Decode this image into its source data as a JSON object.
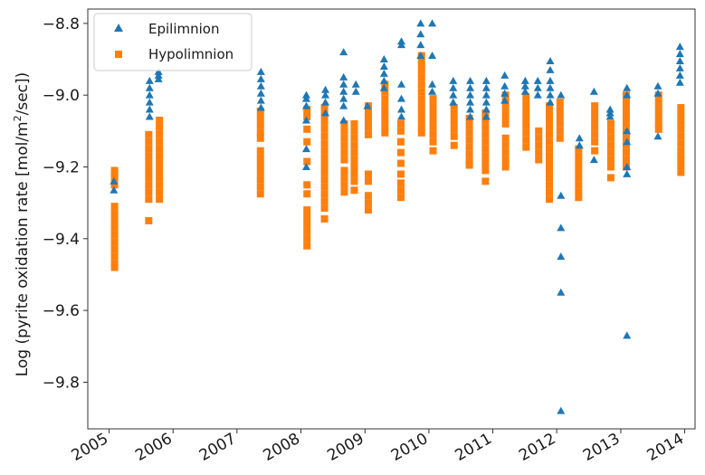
{
  "chart_data": {
    "type": "scatter",
    "title": "",
    "xlabel": "",
    "ylabel": "Log (pyrite oxidation rate [mol/m²/sec])",
    "ylabel_parts": {
      "before": "Log (pyrite oxidation rate [mol/m",
      "sup": "2",
      "after": "/sec])"
    },
    "x_axis_type": "date",
    "xlim": [
      "2004-09-01",
      "2014-03-01"
    ],
    "ylim": [
      -9.93,
      -8.76
    ],
    "x_ticks": [
      {
        "label": "2005",
        "date": "2005-01-01"
      },
      {
        "label": "2006",
        "date": "2006-01-01"
      },
      {
        "label": "2007",
        "date": "2007-01-01"
      },
      {
        "label": "2008",
        "date": "2008-01-01"
      },
      {
        "label": "2009",
        "date": "2009-01-01"
      },
      {
        "label": "2010",
        "date": "2010-01-01"
      },
      {
        "label": "2011",
        "date": "2011-01-01"
      },
      {
        "label": "2012",
        "date": "2012-01-01"
      },
      {
        "label": "2013",
        "date": "2013-01-01"
      },
      {
        "label": "2014",
        "date": "2014-01-01"
      }
    ],
    "y_ticks": [
      {
        "label": "−8.8",
        "value": -8.8
      },
      {
        "label": "−9.0",
        "value": -9.0
      },
      {
        "label": "−9.2",
        "value": -9.2
      },
      {
        "label": "−9.4",
        "value": -9.4
      },
      {
        "label": "−9.6",
        "value": -9.6
      },
      {
        "label": "−9.8",
        "value": -9.8
      }
    ],
    "grid": false,
    "legend_position": "top-left",
    "series": [
      {
        "name": "Epilimnion",
        "marker": "triangle",
        "color": "#1f77b4",
        "points": [
          {
            "date": "2005-01-28",
            "values": [
              -9.24,
              -9.265
            ]
          },
          {
            "date": "2005-08-20",
            "values": [
              -8.96,
              -8.98,
              -9.0,
              -9.02,
              -9.04,
              -9.06
            ]
          },
          {
            "date": "2005-10-10",
            "values": [
              -8.935,
              -8.945,
              -8.955
            ]
          },
          {
            "date": "2007-05-18",
            "values": [
              -8.935,
              -8.955,
              -8.975,
              -8.995,
              -9.015,
              -9.035
            ]
          },
          {
            "date": "2008-02-01",
            "values": [
              -9.0,
              -9.01,
              -9.03,
              -9.07,
              -9.15,
              -9.2
            ]
          },
          {
            "date": "2008-05-20",
            "values": [
              -8.985,
              -9.0,
              -9.02,
              -9.05
            ]
          },
          {
            "date": "2008-09-01",
            "values": [
              -8.88,
              -8.95,
              -8.97,
              -8.99,
              -9.01,
              -9.03,
              -9.07
            ]
          },
          {
            "date": "2008-11-10",
            "values": [
              -8.97,
              -8.99
            ]
          },
          {
            "date": "2009-01-15",
            "values": [
              -9.03
            ]
          },
          {
            "date": "2009-04-20",
            "values": [
              -8.9,
              -8.92,
              -8.94,
              -8.96,
              -8.98
            ]
          },
          {
            "date": "2009-07-28",
            "values": [
              -8.85,
              -8.86,
              -8.97,
              -9.01,
              -9.04,
              -9.06
            ]
          },
          {
            "date": "2009-11-15",
            "values": [
              -8.8,
              -8.83,
              -8.86,
              -8.89
            ]
          },
          {
            "date": "2010-01-20",
            "values": [
              -8.8,
              -8.89,
              -8.97,
              -8.99
            ]
          },
          {
            "date": "2010-05-20",
            "values": [
              -8.96,
              -8.98,
              -9.0,
              -9.02
            ]
          },
          {
            "date": "2010-08-25",
            "values": [
              -8.96,
              -8.98,
              -9.0,
              -9.02,
              -9.04,
              -9.06
            ]
          },
          {
            "date": "2010-11-25",
            "values": [
              -8.96,
              -8.98,
              -9.0,
              -9.02,
              -9.04,
              -9.06
            ]
          },
          {
            "date": "2011-03-10",
            "values": [
              -8.945,
              -8.975,
              -8.995,
              -9.015
            ]
          },
          {
            "date": "2011-07-05",
            "values": [
              -8.96,
              -8.975,
              -8.99
            ]
          },
          {
            "date": "2011-09-15",
            "values": [
              -8.96,
              -8.98,
              -9.0
            ]
          },
          {
            "date": "2011-11-25",
            "values": [
              -8.905,
              -8.93,
              -8.96,
              -8.98,
              -9.0,
              -9.02
            ]
          },
          {
            "date": "2012-01-25",
            "values": [
              -9.0,
              -9.28,
              -9.37,
              -9.45,
              -9.55,
              -9.88
            ]
          },
          {
            "date": "2012-05-10",
            "values": [
              -9.12,
              -9.14
            ]
          },
          {
            "date": "2012-08-01",
            "values": [
              -8.99,
              -9.18
            ]
          },
          {
            "date": "2012-11-01",
            "values": [
              -9.04,
              -9.05,
              -9.06
            ]
          },
          {
            "date": "2013-02-05",
            "values": [
              -8.98,
              -9.0,
              -9.1,
              -9.13,
              -9.2,
              -9.22,
              -9.67
            ]
          },
          {
            "date": "2013-08-01",
            "values": [
              -8.975,
              -8.995,
              -9.115
            ]
          },
          {
            "date": "2013-12-05",
            "values": [
              -8.865,
              -8.885,
              -8.905,
              -8.925,
              -8.945,
              -8.965
            ]
          }
        ]
      },
      {
        "name": "Hypolimnion",
        "marker": "square",
        "color": "#ff7f0e",
        "points": [
          {
            "date": "2005-02-01",
            "values": [
              -9.21,
              -9.22,
              -9.23,
              -9.25,
              -9.31,
              -9.33,
              -9.35,
              -9.37,
              -9.39,
              -9.41,
              -9.43,
              -9.45,
              -9.47,
              -9.48
            ]
          },
          {
            "date": "2005-08-15",
            "values": [
              -9.11,
              -9.13,
              -9.15,
              -9.17,
              -9.19,
              -9.21,
              -9.23,
              -9.25,
              -9.27,
              -9.29,
              -9.35
            ]
          },
          {
            "date": "2005-10-15",
            "values": [
              -9.07,
              -9.09,
              -9.11,
              -9.13,
              -9.15,
              -9.17,
              -9.19,
              -9.21,
              -9.23,
              -9.25,
              -9.27,
              -9.29
            ]
          },
          {
            "date": "2007-05-15",
            "values": [
              -9.045,
              -9.065,
              -9.085,
              -9.105,
              -9.12,
              -9.155,
              -9.175,
              -9.195,
              -9.215,
              -9.235,
              -9.255,
              -9.275
            ]
          },
          {
            "date": "2008-02-05",
            "values": [
              -9.04,
              -9.06,
              -9.095,
              -9.13,
              -9.185,
              -9.25,
              -9.275,
              -9.32,
              -9.34,
              -9.36,
              -9.38,
              -9.4,
              -9.42
            ]
          },
          {
            "date": "2008-05-15",
            "values": [
              -9.035,
              -9.055,
              -9.075,
              -9.095,
              -9.115,
              -9.135,
              -9.155,
              -9.175,
              -9.195,
              -9.215,
              -9.235,
              -9.255,
              -9.275,
              -9.295,
              -9.315,
              -9.345
            ]
          },
          {
            "date": "2008-09-05",
            "values": [
              -9.08,
              -9.1,
              -9.12,
              -9.14,
              -9.16,
              -9.18,
              -9.21,
              -9.23,
              -9.25,
              -9.27
            ]
          },
          {
            "date": "2008-11-01",
            "values": [
              -9.08,
              -9.1,
              -9.12,
              -9.14,
              -9.16,
              -9.18,
              -9.2,
              -9.22,
              -9.24,
              -9.265
            ]
          },
          {
            "date": "2009-01-20",
            "values": [
              -9.03,
              -9.05,
              -9.07,
              -9.09,
              -9.11,
              -9.22,
              -9.24,
              -9.28,
              -9.3,
              -9.32
            ]
          },
          {
            "date": "2009-04-25",
            "values": [
              -8.97,
              -8.99,
              -9.01,
              -9.03,
              -9.05,
              -9.07,
              -9.09,
              -9.105
            ]
          },
          {
            "date": "2009-07-25",
            "values": [
              -9.08,
              -9.1,
              -9.13,
              -9.16,
              -9.19,
              -9.22,
              -9.245,
              -9.265,
              -9.285
            ]
          },
          {
            "date": "2009-11-20",
            "values": [
              -8.89,
              -8.91,
              -8.93,
              -8.95,
              -8.97,
              -8.99,
              -9.01,
              -9.03,
              -9.05,
              -9.07,
              -9.09,
              -9.105
            ]
          },
          {
            "date": "2010-01-25",
            "values": [
              -9.01,
              -9.03,
              -9.05,
              -9.07,
              -9.09,
              -9.11,
              -9.13,
              -9.155
            ]
          },
          {
            "date": "2010-05-25",
            "values": [
              -9.035,
              -9.055,
              -9.075,
              -9.095,
              -9.115,
              -9.14
            ]
          },
          {
            "date": "2010-08-20",
            "values": [
              -9.065,
              -9.085,
              -9.105,
              -9.125,
              -9.145,
              -9.165,
              -9.185,
              -9.195
            ]
          },
          {
            "date": "2010-11-20",
            "values": [
              -9.05,
              -9.07,
              -9.09,
              -9.11,
              -9.13,
              -9.15,
              -9.17,
              -9.19,
              -9.21,
              -9.24
            ]
          },
          {
            "date": "2011-03-15",
            "values": [
              -9.0,
              -9.02,
              -9.04,
              -9.06,
              -9.08,
              -9.12,
              -9.14,
              -9.16,
              -9.18,
              -9.2
            ]
          },
          {
            "date": "2011-07-10",
            "values": [
              -9.005,
              -9.025,
              -9.045,
              -9.065,
              -9.085,
              -9.105,
              -9.125,
              -9.145
            ]
          },
          {
            "date": "2011-09-20",
            "values": [
              -9.1,
              -9.12,
              -9.14,
              -9.16,
              -9.18
            ]
          },
          {
            "date": "2011-11-20",
            "values": [
              -9.03,
              -9.05,
              -9.07,
              -9.09,
              -9.11,
              -9.13,
              -9.15,
              -9.17,
              -9.19,
              -9.21,
              -9.23,
              -9.25,
              -9.27,
              -9.29
            ]
          },
          {
            "date": "2012-01-20",
            "values": [
              -9.02,
              -9.04,
              -9.06,
              -9.08,
              -9.1,
              -9.12
            ]
          },
          {
            "date": "2012-05-05",
            "values": [
              -9.15,
              -9.17,
              -9.19,
              -9.21,
              -9.23,
              -9.25,
              -9.27,
              -9.285
            ]
          },
          {
            "date": "2012-08-05",
            "values": [
              -9.03,
              -9.05,
              -9.07,
              -9.09,
              -9.11,
              -9.13,
              -9.155
            ]
          },
          {
            "date": "2012-11-05",
            "values": [
              -9.08,
              -9.1,
              -9.12,
              -9.14,
              -9.16,
              -9.18,
              -9.2,
              -9.23
            ]
          },
          {
            "date": "2013-02-01",
            "values": [
              -9.0,
              -9.02,
              -9.04,
              -9.06,
              -9.08,
              -9.1,
              -9.12,
              -9.14,
              -9.16,
              -9.18,
              -9.2
            ]
          },
          {
            "date": "2013-08-05",
            "values": [
              -9.0,
              -9.02,
              -9.04,
              -9.06,
              -9.08,
              -9.095
            ]
          },
          {
            "date": "2013-12-10",
            "values": [
              -9.035,
              -9.055,
              -9.075,
              -9.095,
              -9.115,
              -9.135,
              -9.155,
              -9.175,
              -9.195,
              -9.215
            ]
          }
        ]
      }
    ]
  }
}
